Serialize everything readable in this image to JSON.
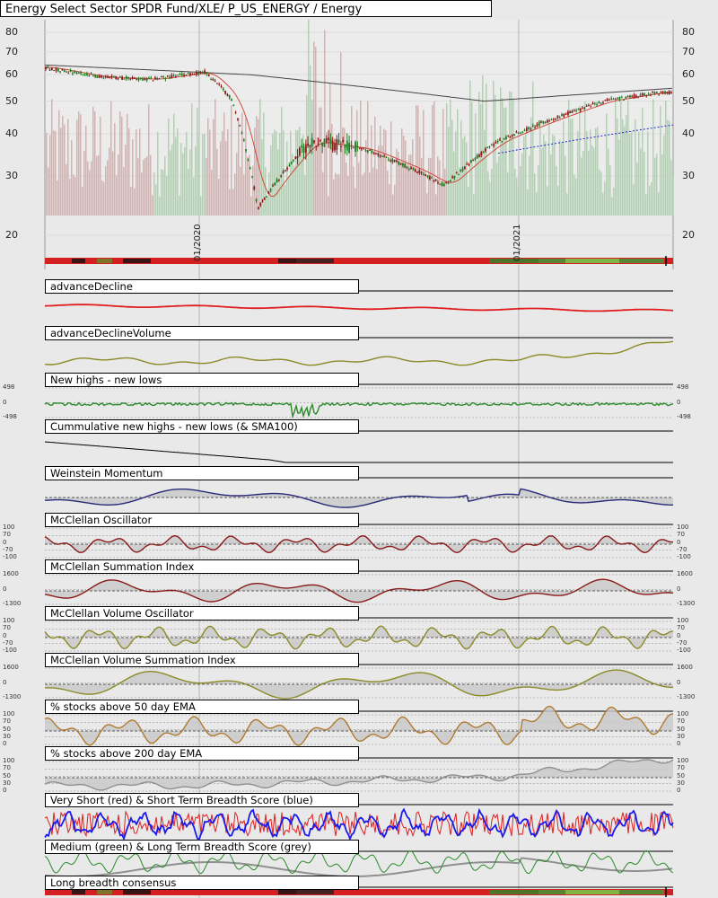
{
  "page": {
    "title": "Energy Select Sector SPDR Fund/XLE/ P_US_ENERGY / Energy"
  },
  "colors": {
    "price_up": "#1e7a1e",
    "price_down": "#8b1a1a",
    "ma_short": "#d04a3a",
    "ma_long": "#444444",
    "ma_dashed": "#1a2bcc",
    "volume_up": "#9fd29f",
    "volume_down": "#d9a3a3",
    "red": "#e02020",
    "olive": "#8b8a26",
    "green": "#2a8a2a",
    "navy": "#2a2a7a",
    "maroon": "#8b1a1a",
    "bronze": "#b07a30",
    "grey": "#909090",
    "blue": "#1a1aee"
  },
  "chart_data": {
    "type": "line",
    "price_panel": {
      "y_ticks": [
        "80",
        "70",
        "60",
        "50",
        "40",
        "30",
        "20"
      ],
      "x_ticks": [
        "01/2020",
        "01/2021"
      ],
      "scale": "log",
      "close_approx": [
        {
          "date": "2019-07",
          "value": 63
        },
        {
          "date": "2019-09",
          "value": 59
        },
        {
          "date": "2019-11",
          "value": 58
        },
        {
          "date": "2020-01",
          "value": 61
        },
        {
          "date": "2020-02",
          "value": 51
        },
        {
          "date": "2020-03",
          "value": 24
        },
        {
          "date": "2020-05",
          "value": 38
        },
        {
          "date": "2020-07",
          "value": 36
        },
        {
          "date": "2020-09",
          "value": 31
        },
        {
          "date": "2020-10",
          "value": 28
        },
        {
          "date": "2020-12",
          "value": 38
        },
        {
          "date": "2021-02",
          "value": 44
        },
        {
          "date": "2021-04",
          "value": 50
        },
        {
          "date": "2021-06",
          "value": 53
        }
      ]
    },
    "indicators": [
      {
        "name": "advanceDecline"
      },
      {
        "name": "advanceDeclineVolume"
      },
      {
        "name": "New highs - new lows",
        "y_ticks": [
          "498",
          "0",
          "-498"
        ]
      },
      {
        "name": "Cummulative new highs - new lows (& SMA100)"
      },
      {
        "name": "Weinstein Momentum"
      },
      {
        "name": "McClellan Oscillator",
        "y_ticks": [
          "100",
          "70",
          "0",
          "-70",
          "-100"
        ]
      },
      {
        "name": "McClellan Summation Index",
        "y_ticks": [
          "1600",
          "0",
          "-1300"
        ]
      },
      {
        "name": "McClellan Volume Oscillator",
        "y_ticks": [
          "100",
          "70",
          "0",
          "-70",
          "-100"
        ]
      },
      {
        "name": "McClellan Volume Summation Index",
        "y_ticks": [
          "1600",
          "0",
          "-1300"
        ]
      },
      {
        "name": "% stocks above 50 day EMA",
        "y_ticks": [
          "100",
          "70",
          "50",
          "30",
          "0"
        ]
      },
      {
        "name": "% stocks above 200 day EMA",
        "y_ticks": [
          "100",
          "70",
          "50",
          "30",
          "0"
        ]
      },
      {
        "name": "Very Short (red) & Short Term Breadth Score (blue)"
      },
      {
        "name": "Medium (green) & Long Term Breadth Score (grey)"
      },
      {
        "name": "Long breadth consensus"
      }
    ]
  }
}
